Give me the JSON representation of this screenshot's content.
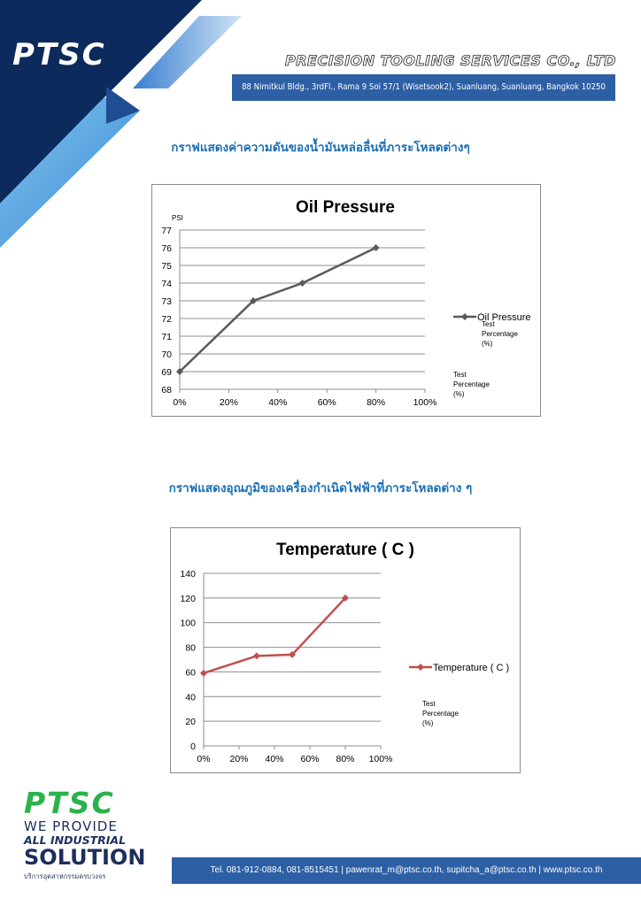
{
  "header": {
    "logo": "PTSC",
    "company_name": "PRECISION TOOLING SERVICES CO., LTD",
    "address": "88 Nimitkul Bldg., 3rdFl., Rama 9 Soi 57/1 (Wisetsook2), Suanluang, Suanluang, Bangkok 10250",
    "brand_color": "#2d5fa5",
    "accent_color": "#0d2a5c"
  },
  "sections": [
    {
      "title": "กราฟแสดงค่าความดันของน้ำมันหล่อลื่นที่ภาระโหลดต่างๆ"
    },
    {
      "title": "กราฟแสดงอุณภูมิของเครื่องกำเนิดไฟฟ้าที่ภาระโหลดต่าง ๆ"
    }
  ],
  "chart_data": [
    {
      "type": "line",
      "title": "Oil Pressure",
      "ylabel": "PSI",
      "xlabel": "",
      "x_ticks": [
        "0%",
        "20%",
        "40%",
        "60%",
        "80%",
        "100%"
      ],
      "xlim": [
        0,
        100
      ],
      "y_ticks": [
        "68",
        "69",
        "70",
        "71",
        "72",
        "73",
        "74",
        "75",
        "76",
        "77"
      ],
      "ylim": [
        68,
        77
      ],
      "grid": true,
      "legend": "right",
      "series": [
        {
          "name": "Oil Pressure",
          "color": "#595959",
          "x": [
            0,
            30,
            50,
            80
          ],
          "y": [
            69,
            73,
            74,
            76
          ]
        }
      ],
      "annotations": [
        "Test",
        "Percentage",
        "(%)"
      ],
      "annotations_2": [
        "Test",
        "Percentage",
        "(%)"
      ]
    },
    {
      "type": "line",
      "title": "Temperature ( C )",
      "xlabel": "",
      "ylabel": "",
      "x_ticks": [
        "0%",
        "20%",
        "40%",
        "60%",
        "80%",
        "100%"
      ],
      "xlim": [
        0,
        100
      ],
      "y_ticks": [
        "0",
        "20",
        "40",
        "60",
        "80",
        "100",
        "120",
        "140"
      ],
      "ylim": [
        0,
        140
      ],
      "grid": true,
      "legend": "right",
      "series": [
        {
          "name": "Temperature ( C )",
          "color": "#c0504d",
          "x": [
            0,
            30,
            50,
            80
          ],
          "y": [
            59,
            73,
            74,
            120
          ]
        }
      ],
      "annotations": [
        "Test",
        "Percentage",
        "(%)"
      ]
    }
  ],
  "footer": {
    "logo": "PTSC",
    "tagline_1": "WE PROVIDE",
    "tagline_2": "ALL INDUSTRIAL",
    "tagline_3": "SOLUTION",
    "tagline_4": "บริการอุตสาหกรรมครบวงจร",
    "contact": "Tel. 081-912-0884, 081-8515451 | pawenrat_m@ptsc.co.th, supitcha_a@ptsc.co.th | www.ptsc.co.th"
  }
}
